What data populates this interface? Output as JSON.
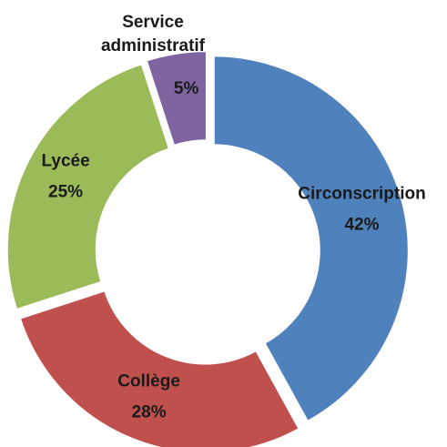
{
  "chart_data": {
    "type": "donut",
    "categories": [
      "Circonscription",
      "Collège",
      "Lycée",
      "Service administratif"
    ],
    "values": [
      42,
      28,
      25,
      5
    ],
    "value_labels": [
      "42%",
      "28%",
      "25%",
      "5%"
    ],
    "colors": [
      "#4f81bd",
      "#c0504d",
      "#9bbb59",
      "#8064a2"
    ]
  }
}
